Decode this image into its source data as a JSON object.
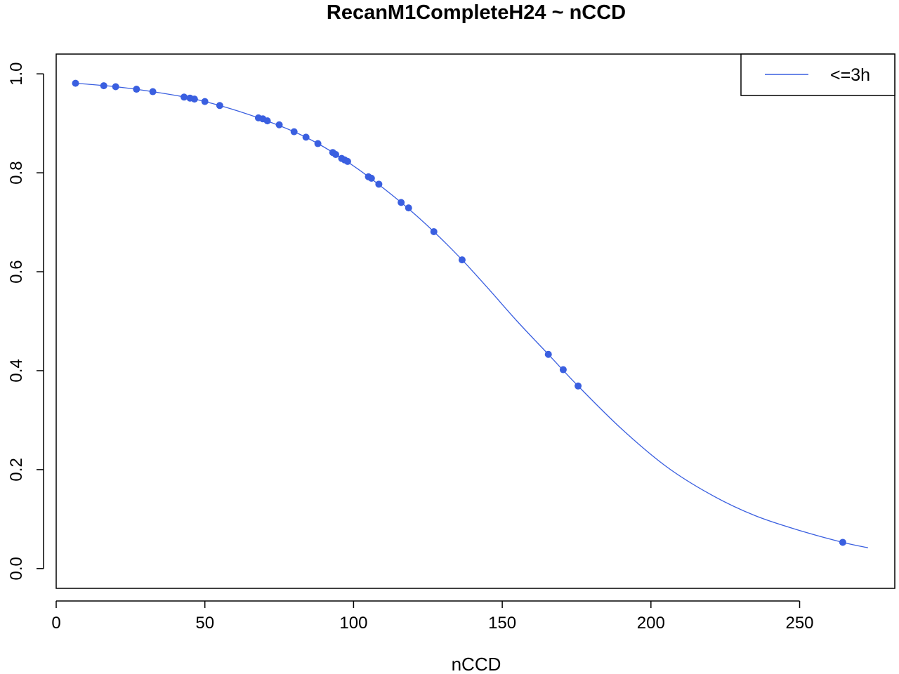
{
  "chart_data": {
    "type": "scatter",
    "title": "RecanM1CompleteH24 ~ nCCD",
    "xlabel": "nCCD",
    "ylabel": "",
    "xlim": [
      0,
      282
    ],
    "ylim": [
      -0.04,
      1.04
    ],
    "x_ticks": [
      0,
      50,
      100,
      150,
      200,
      250
    ],
    "y_ticks": [
      0.0,
      0.2,
      0.4,
      0.6,
      0.8,
      1.0
    ],
    "x_tick_labels": [
      "0",
      "50",
      "100",
      "150",
      "200",
      "250"
    ],
    "y_tick_labels": [
      "0.0",
      "0.2",
      "0.4",
      "0.6",
      "0.8",
      "1.0"
    ],
    "grid": false,
    "legend": {
      "position": "top-right",
      "entries": [
        "<=3h"
      ]
    },
    "colors": {
      "series": "#3a5fe0",
      "axis": "#000000"
    },
    "series": [
      {
        "name": "<=3h",
        "points": [
          [
            6.5,
            0.981
          ],
          [
            16,
            0.976
          ],
          [
            20,
            0.974
          ],
          [
            27,
            0.969
          ],
          [
            32.5,
            0.964
          ],
          [
            43,
            0.953
          ],
          [
            45,
            0.951
          ],
          [
            46.5,
            0.949
          ],
          [
            50,
            0.944
          ],
          [
            55,
            0.936
          ],
          [
            68,
            0.911
          ],
          [
            69.5,
            0.909
          ],
          [
            71,
            0.905
          ],
          [
            75,
            0.897
          ],
          [
            80,
            0.883
          ],
          [
            84,
            0.872
          ],
          [
            88,
            0.859
          ],
          [
            93,
            0.841
          ],
          [
            94,
            0.837
          ],
          [
            96,
            0.829
          ],
          [
            97,
            0.826
          ],
          [
            98,
            0.823
          ],
          [
            105,
            0.792
          ],
          [
            106,
            0.789
          ],
          [
            108.5,
            0.777
          ],
          [
            116,
            0.74
          ],
          [
            118.5,
            0.729
          ],
          [
            127,
            0.681
          ],
          [
            136.5,
            0.624
          ],
          [
            165.5,
            0.433
          ],
          [
            170.5,
            0.402
          ],
          [
            175.5,
            0.369
          ],
          [
            264.5,
            0.053
          ]
        ],
        "curve": [
          [
            6.5,
            0.981
          ],
          [
            20,
            0.974
          ],
          [
            32.5,
            0.964
          ],
          [
            45,
            0.951
          ],
          [
            55,
            0.936
          ],
          [
            68,
            0.911
          ],
          [
            80,
            0.883
          ],
          [
            88,
            0.859
          ],
          [
            97,
            0.826
          ],
          [
            105,
            0.792
          ],
          [
            116,
            0.74
          ],
          [
            127,
            0.681
          ],
          [
            136.5,
            0.624
          ],
          [
            145,
            0.568
          ],
          [
            155,
            0.5
          ],
          [
            165.5,
            0.433
          ],
          [
            175.5,
            0.369
          ],
          [
            190,
            0.283
          ],
          [
            205,
            0.207
          ],
          [
            220,
            0.15
          ],
          [
            235,
            0.107
          ],
          [
            250,
            0.077
          ],
          [
            264.5,
            0.053
          ],
          [
            273,
            0.042
          ]
        ]
      }
    ]
  }
}
